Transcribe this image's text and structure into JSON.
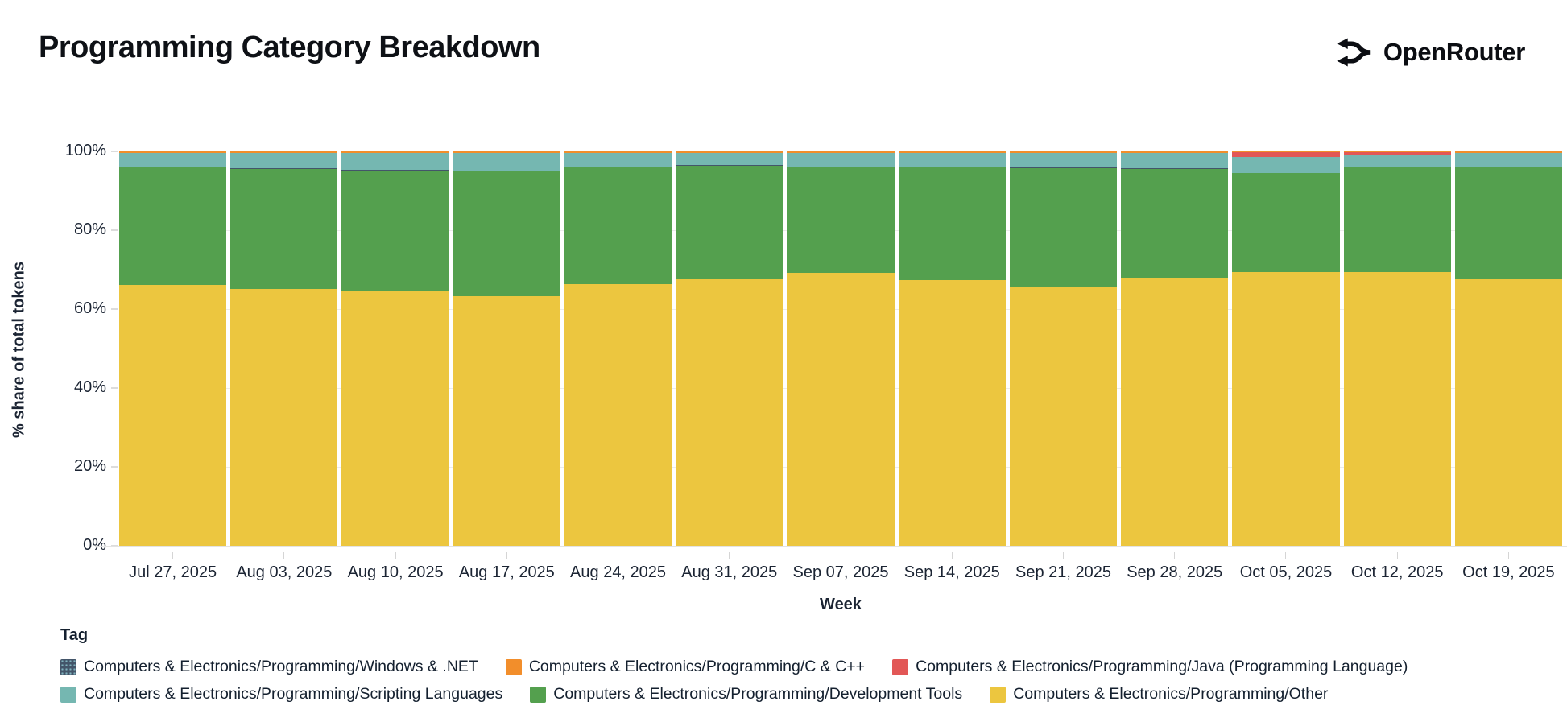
{
  "header": {
    "title": "Programming Category Breakdown",
    "brand": "OpenRouter"
  },
  "chart_data": {
    "type": "bar",
    "variant": "stacked-100-percent",
    "title": "Programming Category Breakdown",
    "xlabel": "Week",
    "ylabel": "% share of total tokens",
    "ylim": [
      0,
      100
    ],
    "y_ticks": [
      "0%",
      "20%",
      "40%",
      "60%",
      "80%",
      "100%"
    ],
    "grid": true,
    "legend_title": "Tag",
    "legend_position": "bottom",
    "categories": [
      "Jul 27, 2025",
      "Aug 03, 2025",
      "Aug 10, 2025",
      "Aug 17, 2025",
      "Aug 24, 2025",
      "Aug 31, 2025",
      "Sep 07, 2025",
      "Sep 14, 2025",
      "Sep 21, 2025",
      "Sep 28, 2025",
      "Oct 05, 2025",
      "Oct 12, 2025",
      "Oct 19, 2025"
    ],
    "stack_order_note": "series listed bottom-to-top as stacked",
    "series": [
      {
        "name": "Computers & Electronics/Programming/Other",
        "color": "#ecc63f",
        "pattern": "solid",
        "values": [
          66.1,
          65.1,
          64.4,
          63.2,
          66.4,
          67.8,
          69.1,
          67.4,
          65.8,
          68.0,
          69.3,
          69.4,
          67.8
        ]
      },
      {
        "name": "Computers & Electronics/Programming/Development Tools",
        "color": "#54a04e",
        "pattern": "solid",
        "values": [
          29.9,
          30.5,
          30.8,
          31.7,
          29.5,
          28.6,
          26.8,
          28.7,
          30.0,
          27.6,
          25.1,
          26.6,
          28.2
        ]
      },
      {
        "name": "Computers & Electronics/Programming/Windows & .NET",
        "color": "#435569",
        "pattern": "dots",
        "values": [
          0.1,
          0.1,
          0.1,
          0.1,
          0.1,
          0.1,
          0.1,
          0.1,
          0.1,
          0.1,
          0.1,
          0.1,
          0.1
        ]
      },
      {
        "name": "Computers & Electronics/Programming/Scripting Languages",
        "color": "#75b7b1",
        "pattern": "solid",
        "values": [
          3.4,
          3.8,
          4.2,
          4.5,
          3.5,
          3.1,
          3.5,
          3.3,
          3.6,
          3.9,
          4.0,
          2.8,
          3.4
        ]
      },
      {
        "name": "Computers & Electronics/Programming/Java (Programming Language)",
        "color": "#e25756",
        "pattern": "solid",
        "values": [
          0,
          0,
          0,
          0,
          0,
          0,
          0,
          0,
          0,
          0,
          1.3,
          1.0,
          0
        ]
      },
      {
        "name": "Computers & Electronics/Programming/C & C++",
        "color": "#f28e2b",
        "pattern": "solid",
        "values": [
          0.5,
          0.5,
          0.5,
          0.5,
          0.5,
          0.4,
          0.5,
          0.5,
          0.5,
          0.4,
          0.2,
          0.1,
          0.5
        ]
      }
    ],
    "legend_display_order": [
      "Computers & Electronics/Programming/Windows & .NET",
      "Computers & Electronics/Programming/C & C++",
      "Computers & Electronics/Programming/Java (Programming Language)",
      "Computers & Electronics/Programming/Scripting Languages",
      "Computers & Electronics/Programming/Development Tools",
      "Computers & Electronics/Programming/Other"
    ]
  },
  "axes": {
    "y_label": "% share of total tokens",
    "x_label": "Week"
  },
  "legend": {
    "title": "Tag"
  }
}
